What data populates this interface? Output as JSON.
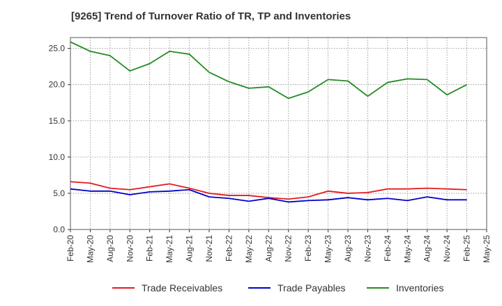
{
  "chart_data": {
    "type": "line",
    "title": "[9265]  Trend of Turnover Ratio of TR, TP and Inventories",
    "xlabel": "",
    "ylabel": "",
    "x": [
      "Feb-20",
      "May-20",
      "Aug-20",
      "Nov-20",
      "Feb-21",
      "May-21",
      "Aug-21",
      "Nov-21",
      "Feb-22",
      "May-22",
      "Aug-22",
      "Nov-22",
      "Feb-23",
      "May-23",
      "Aug-23",
      "Nov-23",
      "Feb-24",
      "May-24",
      "Aug-24",
      "Nov-24",
      "Feb-25",
      "May-25"
    ],
    "ylim": [
      0,
      26.5
    ],
    "yticks": [
      "0.0",
      "5.0",
      "10.0",
      "15.0",
      "20.0",
      "25.0"
    ],
    "grid": true,
    "legend_position": "bottom",
    "series": [
      {
        "name": "Trade Receivables",
        "color": "#e41a1c",
        "values": [
          6.6,
          6.4,
          5.7,
          5.5,
          5.9,
          6.3,
          5.7,
          5.0,
          4.7,
          4.7,
          4.4,
          4.2,
          4.5,
          5.3,
          5.0,
          5.1,
          5.6,
          5.6,
          5.7,
          5.6,
          5.5,
          null
        ]
      },
      {
        "name": "Trade Payables",
        "color": "#0000cc",
        "values": [
          5.6,
          5.3,
          5.3,
          4.8,
          5.2,
          5.3,
          5.5,
          4.5,
          4.3,
          3.9,
          4.3,
          3.8,
          4.0,
          4.1,
          4.4,
          4.1,
          4.3,
          4.0,
          4.5,
          4.1,
          4.1,
          null
        ]
      },
      {
        "name": "Inventories",
        "color": "#228b22",
        "values": [
          25.9,
          24.6,
          24.0,
          21.9,
          22.9,
          24.6,
          24.2,
          21.7,
          20.4,
          19.5,
          19.7,
          18.1,
          19.0,
          20.7,
          20.5,
          18.4,
          20.3,
          20.8,
          20.7,
          18.6,
          20.0,
          null
        ]
      }
    ]
  }
}
